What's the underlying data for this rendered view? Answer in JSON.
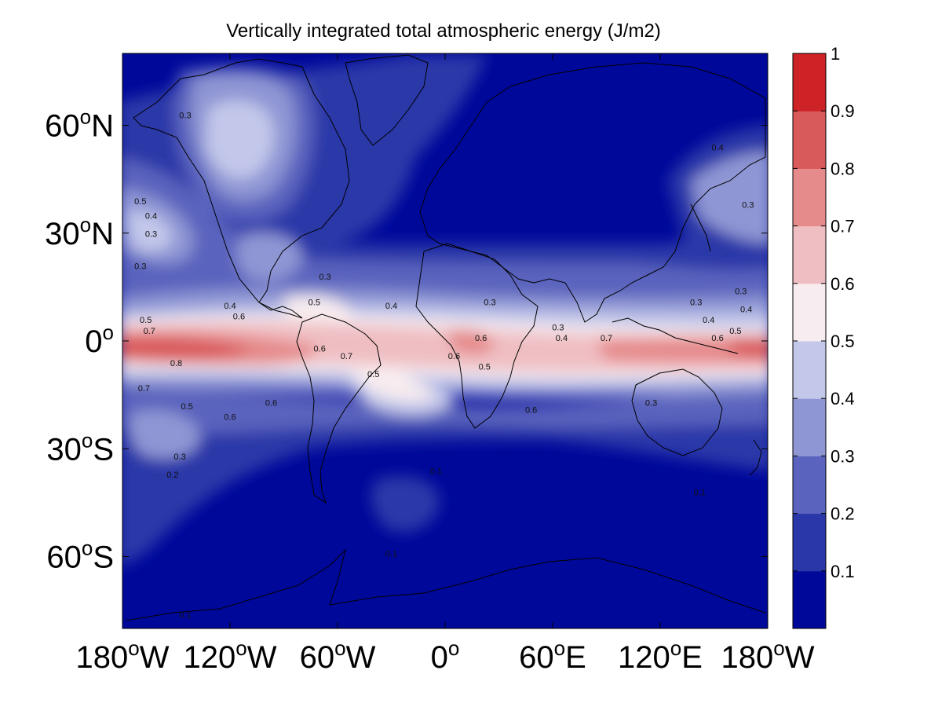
{
  "title": "Vertically integrated total atmospheric energy (J/m2)",
  "axes": {
    "lon_ticks": [
      {
        "value": -180,
        "deg": "180",
        "hemi": "W"
      },
      {
        "value": -120,
        "deg": "120",
        "hemi": "W"
      },
      {
        "value": -60,
        "deg": "60",
        "hemi": "W"
      },
      {
        "value": 0,
        "deg": "0",
        "hemi": ""
      },
      {
        "value": 60,
        "deg": "60",
        "hemi": "E"
      },
      {
        "value": 120,
        "deg": "120",
        "hemi": "E"
      },
      {
        "value": 180,
        "deg": "180",
        "hemi": "W"
      }
    ],
    "lat_ticks": [
      {
        "value": 60,
        "deg": "60",
        "hemi": "N"
      },
      {
        "value": 30,
        "deg": "30",
        "hemi": "N"
      },
      {
        "value": 0,
        "deg": "0",
        "hemi": ""
      },
      {
        "value": -30,
        "deg": "30",
        "hemi": "S"
      },
      {
        "value": -60,
        "deg": "60",
        "hemi": "S"
      }
    ],
    "lon_range": [
      -180,
      180
    ],
    "lat_range": [
      -80,
      80
    ],
    "degree_symbol": "o"
  },
  "colorbar": {
    "levels": [
      "0.1",
      "0.2",
      "0.3",
      "0.4",
      "0.5",
      "0.6",
      "0.7",
      "0.8",
      "0.9",
      "1"
    ],
    "colors": [
      "#00089a",
      "#2a37a8",
      "#5a63bd",
      "#8f96d4",
      "#c3c7ea",
      "#f7ecef",
      "#efbec2",
      "#e68b8c",
      "#d95a5b",
      "#cd2226"
    ]
  },
  "contour_labels": [
    {
      "text": "0.5",
      "lon": -170,
      "lat": 38
    },
    {
      "text": "0.4",
      "lon": -164,
      "lat": 34
    },
    {
      "text": "0.3",
      "lon": -164,
      "lat": 29
    },
    {
      "text": "0.3",
      "lon": -170,
      "lat": 20
    },
    {
      "text": "0.5",
      "lon": -167,
      "lat": 5
    },
    {
      "text": "0.7",
      "lon": -165,
      "lat": 2
    },
    {
      "text": "0.8",
      "lon": -150,
      "lat": -7
    },
    {
      "text": "0.7",
      "lon": -168,
      "lat": -14
    },
    {
      "text": "0.5",
      "lon": -144,
      "lat": -19
    },
    {
      "text": "0.6",
      "lon": -120,
      "lat": -22
    },
    {
      "text": "0.6",
      "lon": -97,
      "lat": -18
    },
    {
      "text": "0.4",
      "lon": -120,
      "lat": 9
    },
    {
      "text": "0.6",
      "lon": -115,
      "lat": 6
    },
    {
      "text": "0.3",
      "lon": -148,
      "lat": -33
    },
    {
      "text": "0.2",
      "lon": -152,
      "lat": -38
    },
    {
      "text": "0.3",
      "lon": -145,
      "lat": 62
    },
    {
      "text": "0.3",
      "lon": -67,
      "lat": 17
    },
    {
      "text": "0.5",
      "lon": -73,
      "lat": 10
    },
    {
      "text": "0.6",
      "lon": -70,
      "lat": -3
    },
    {
      "text": "0.7",
      "lon": -55,
      "lat": -5
    },
    {
      "text": "0.5",
      "lon": -40,
      "lat": -10
    },
    {
      "text": "0.4",
      "lon": -30,
      "lat": 9
    },
    {
      "text": "0.3",
      "lon": 25,
      "lat": 10
    },
    {
      "text": "0.6",
      "lon": 20,
      "lat": 0
    },
    {
      "text": "0.6",
      "lon": 5,
      "lat": -5
    },
    {
      "text": "0.5",
      "lon": 22,
      "lat": -8
    },
    {
      "text": "0.6",
      "lon": 48,
      "lat": -20
    },
    {
      "text": "0.3",
      "lon": 63,
      "lat": 3
    },
    {
      "text": "0.4",
      "lon": 65,
      "lat": 0
    },
    {
      "text": "0.7",
      "lon": 90,
      "lat": 0
    },
    {
      "text": "0.3",
      "lon": 140,
      "lat": 10
    },
    {
      "text": "0.4",
      "lon": 147,
      "lat": 5
    },
    {
      "text": "0.6",
      "lon": 152,
      "lat": 0
    },
    {
      "text": "0.5",
      "lon": 162,
      "lat": 2
    },
    {
      "text": "0.3",
      "lon": 165,
      "lat": 13
    },
    {
      "text": "0.4",
      "lon": 168,
      "lat": 8
    },
    {
      "text": "0.3",
      "lon": 115,
      "lat": -18
    },
    {
      "text": "0.1",
      "lon": 142,
      "lat": -43
    },
    {
      "text": "0.4",
      "lon": 152,
      "lat": 53
    },
    {
      "text": "0.3",
      "lon": 169,
      "lat": 37
    },
    {
      "text": "0.1",
      "lon": -5,
      "lat": -37
    },
    {
      "text": "0.1",
      "lon": -30,
      "lat": -60
    },
    {
      "text": "0.1",
      "lon": -145,
      "lat": -77
    }
  ]
}
